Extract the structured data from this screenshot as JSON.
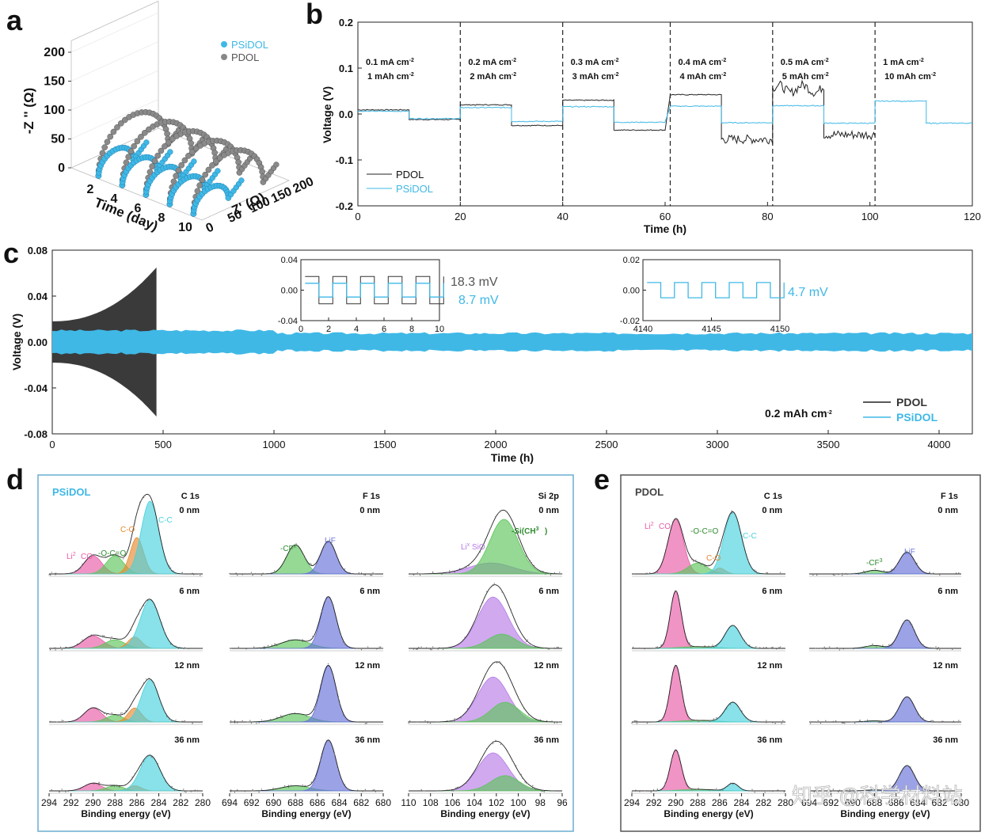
{
  "panel_letters": [
    "a",
    "b",
    "c",
    "d",
    "e"
  ],
  "colors": {
    "psidol": "#3fb8e6",
    "pdol": "#333333",
    "pink": "#e85aa6",
    "green": "#5cc45a",
    "orange": "#e7892f",
    "cyan": "#49d1dd",
    "blue": "#6670d8",
    "purple": "#b77be6",
    "frame_d": "#6aaed0",
    "frame_e": "#555555"
  },
  "chart_data": [
    {
      "id": "a",
      "type": "scatter3d",
      "axes": {
        "x_label": "Time (day)",
        "y_label": "Z' (Ω)",
        "z_label": "-Z '' (Ω)"
      },
      "x_ticks": [
        "2",
        "4",
        "6",
        "8",
        "10"
      ],
      "y_ticks": [
        "0",
        "50",
        "100",
        "150",
        "200"
      ],
      "z_ticks": [
        "0",
        "50",
        "100",
        "150",
        "200"
      ],
      "zlim": [
        0,
        220
      ],
      "days": [
        2,
        4,
        6,
        8,
        10
      ],
      "series": [
        {
          "name": "PSiDOL",
          "zmax": [
            32,
            32,
            32,
            32,
            32
          ],
          "rmax": [
            80,
            80,
            80,
            80,
            80
          ]
        },
        {
          "name": "PDOL",
          "zmax": [
            78,
            78,
            78,
            78,
            78
          ],
          "rmax": [
            160,
            160,
            160,
            160,
            160
          ]
        }
      ]
    },
    {
      "id": "b",
      "type": "line",
      "xlabel": "Time (h)",
      "ylabel": "Voltage (V)",
      "xlim": [
        0,
        120
      ],
      "ylim": [
        -0.2,
        0.2
      ],
      "x_ticks": [
        "0",
        "20",
        "40",
        "60",
        "80",
        "100",
        "120"
      ],
      "y_ticks": [
        "-0.2",
        "-0.1",
        "0.0",
        "0.1",
        "0.2"
      ],
      "dividers": [
        20,
        40,
        61,
        81,
        101
      ],
      "segments": [
        {
          "current": "0.1 mA cm",
          "capacity": "1 mAh cm",
          "sup": "-2"
        },
        {
          "current": "0.2 mA cm",
          "capacity": "2 mAh cm",
          "sup": "-2"
        },
        {
          "current": "0.3 mA cm",
          "capacity": "3 mAh cm",
          "sup": "-2"
        },
        {
          "current": "0.4 mA cm",
          "capacity": "4 mAh cm",
          "sup": "-2"
        },
        {
          "current": "0.5 mA cm",
          "capacity": "5 mAh cm",
          "sup": "-2"
        },
        {
          "current": "1 mA cm",
          "capacity": "10 mAh cm",
          "sup": "-2"
        }
      ],
      "series": [
        {
          "name": "PDOL",
          "levels": [
            [
              0,
              10,
              0.009
            ],
            [
              10,
              20,
              -0.012
            ],
            [
              20,
              30,
              0.02
            ],
            [
              30,
              40,
              -0.025
            ],
            [
              40,
              50,
              0.03
            ],
            [
              50,
              60,
              -0.035
            ],
            [
              61,
              71,
              0.042
            ],
            [
              71,
              81,
              -0.055
            ],
            [
              81,
              91,
              0.055
            ],
            [
              91,
              101,
              -0.045
            ]
          ]
        },
        {
          "name": "PSiDOL",
          "levels": [
            [
              0,
              10,
              0.006
            ],
            [
              10,
              20,
              -0.01
            ],
            [
              20,
              30,
              0.014
            ],
            [
              30,
              40,
              -0.016
            ],
            [
              40,
              50,
              0.016
            ],
            [
              50,
              60,
              -0.018
            ],
            [
              61,
              71,
              0.017
            ],
            [
              71,
              81,
              -0.019
            ],
            [
              81,
              91,
              0.018
            ],
            [
              91,
              101,
              -0.02
            ],
            [
              101,
              111,
              0.028
            ],
            [
              111,
              120,
              -0.02
            ]
          ]
        }
      ]
    },
    {
      "id": "c",
      "type": "line",
      "xlabel": "Time (h)",
      "ylabel": "Voltage (V)",
      "xlim": [
        0,
        4150
      ],
      "ylim": [
        -0.08,
        0.08
      ],
      "x_ticks": [
        "0",
        "500",
        "1000",
        "1500",
        "2000",
        "2500",
        "3000",
        "3500",
        "4000"
      ],
      "y_ticks": [
        "-0.08",
        "-0.04",
        "0.00",
        "0.04",
        "0.08"
      ],
      "condition": "0.2 mAh cm",
      "condition_sup": "-2",
      "series": [
        {
          "name": "PDOL",
          "x_end": 470,
          "amp_start": 0.018,
          "amp_end": 0.065
        },
        {
          "name": "PSiDOL",
          "x_end": 4150,
          "amp": 0.01
        }
      ],
      "insets": [
        {
          "xlim": [
            0,
            10
          ],
          "ylim": [
            -0.04,
            0.04
          ],
          "x_ticks": [
            "0",
            "2",
            "4",
            "6",
            "8",
            "10"
          ],
          "y_ticks": [
            "-0.04",
            "0.00",
            "0.04"
          ],
          "label_pdol": "18.3 mV",
          "label_psidol": "8.7 mV",
          "pdol_amp": 0.018,
          "psidol_amp": 0.009
        },
        {
          "xlim": [
            4140,
            4150
          ],
          "ylim": [
            -0.02,
            0.02
          ],
          "x_ticks": [
            "4140",
            "4145",
            "4150"
          ],
          "y_ticks": [
            "-0.02",
            "0.00",
            "0.02"
          ],
          "label_psidol": "4.7 mV",
          "psidol_amp": 0.005
        }
      ]
    },
    {
      "id": "d",
      "type": "spectra_grid",
      "legend": "PSiDOL",
      "columns": [
        {
          "element": "C 1s",
          "xlim": [
            294,
            280
          ],
          "x_ticks": [
            "294",
            "292",
            "290",
            "288",
            "286",
            "284",
            "282",
            "280"
          ],
          "xlabel": "Binding energy (eV)",
          "labels": {
            "li2co3": "Li",
            "li2co3_b": "CO",
            "oco": "-O-C=O",
            "co": "C-O",
            "cc": "C-C"
          }
        },
        {
          "element": "F 1s",
          "xlim": [
            694,
            680
          ],
          "x_ticks": [
            "694",
            "692",
            "690",
            "688",
            "686",
            "684",
            "682",
            "680"
          ],
          "xlabel": "Binding energy (eV)",
          "labels": {
            "cfx": "-CF",
            "lif": "LiF"
          }
        },
        {
          "element": "Si 2p",
          "xlim": [
            110,
            96
          ],
          "x_ticks": [
            "110",
            "108",
            "106",
            "104",
            "102",
            "100",
            "98",
            "96"
          ],
          "xlabel": "Binding energy (eV)",
          "labels": {
            "lisio": "Li",
            "lisio_b": "SiO",
            "sich": "-Si(CH",
            "sich_b": ")"
          }
        }
      ],
      "depths": [
        "0 nm",
        "6 nm",
        "12 nm",
        "36 nm"
      ]
    },
    {
      "id": "e",
      "type": "spectra_grid",
      "legend": "PDOL",
      "columns": [
        {
          "element": "C 1s",
          "xlim": [
            294,
            280
          ],
          "x_ticks": [
            "294",
            "292",
            "290",
            "288",
            "286",
            "284",
            "282",
            "280"
          ],
          "xlabel": "Binding energy (eV)",
          "labels": {
            "li2co3": "Li",
            "li2co3_b": "CO",
            "oco": "-O-C=O",
            "co": "C-O",
            "cc": "C-C"
          }
        },
        {
          "element": "F 1s",
          "xlim": [
            694,
            680
          ],
          "x_ticks": [
            "694",
            "692",
            "690",
            "688",
            "686",
            "684",
            "682",
            "680"
          ],
          "xlabel": "Binding energy (eV)",
          "labels": {
            "cf3": "-CF",
            "lif": "LiF"
          }
        }
      ],
      "depths": [
        "0 nm",
        "6 nm",
        "12 nm",
        "36 nm"
      ]
    }
  ],
  "watermark": "知乎 @科学材料站"
}
